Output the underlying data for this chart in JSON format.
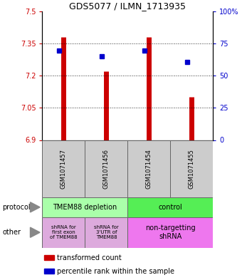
{
  "title": "GDS5077 / ILMN_1713935",
  "samples": [
    "GSM1071457",
    "GSM1071456",
    "GSM1071454",
    "GSM1071455"
  ],
  "bar_values": [
    7.38,
    7.22,
    7.38,
    7.1
  ],
  "dot_values": [
    7.315,
    7.29,
    7.315,
    7.265
  ],
  "ylim": [
    6.9,
    7.5
  ],
  "yticks_left": [
    6.9,
    7.05,
    7.2,
    7.35,
    7.5
  ],
  "yticks_right_vals": [
    0,
    25,
    50,
    75,
    100
  ],
  "yticks_right_labels": [
    "0",
    "25",
    "50",
    "75",
    "100%"
  ],
  "bar_bottom": 6.9,
  "bar_color": "#cc0000",
  "dot_color": "#0000cc",
  "protocol_labels": [
    "TMEM88 depletion",
    "control"
  ],
  "protocol_color_left": "#aaffaa",
  "protocol_color_right": "#55ee55",
  "other_labels_left0": "shRNA for\nfirst exon\nof TMEM88",
  "other_labels_left1": "shRNA for\n3'UTR of\nTMEM88",
  "other_label_right": "non-targetting\nshRNA",
  "other_color_left": "#ddaadd",
  "other_color_right": "#ee77ee",
  "sample_bg": "#cccccc",
  "legend_red_label": "transformed count",
  "legend_blue_label": "percentile rank within the sample",
  "left_label_color": "#cc0000",
  "right_label_color": "#0000cc",
  "title_fontsize": 9,
  "tick_fontsize": 7,
  "sample_fontsize": 6,
  "annotation_fontsize": 7,
  "legend_fontsize": 7
}
